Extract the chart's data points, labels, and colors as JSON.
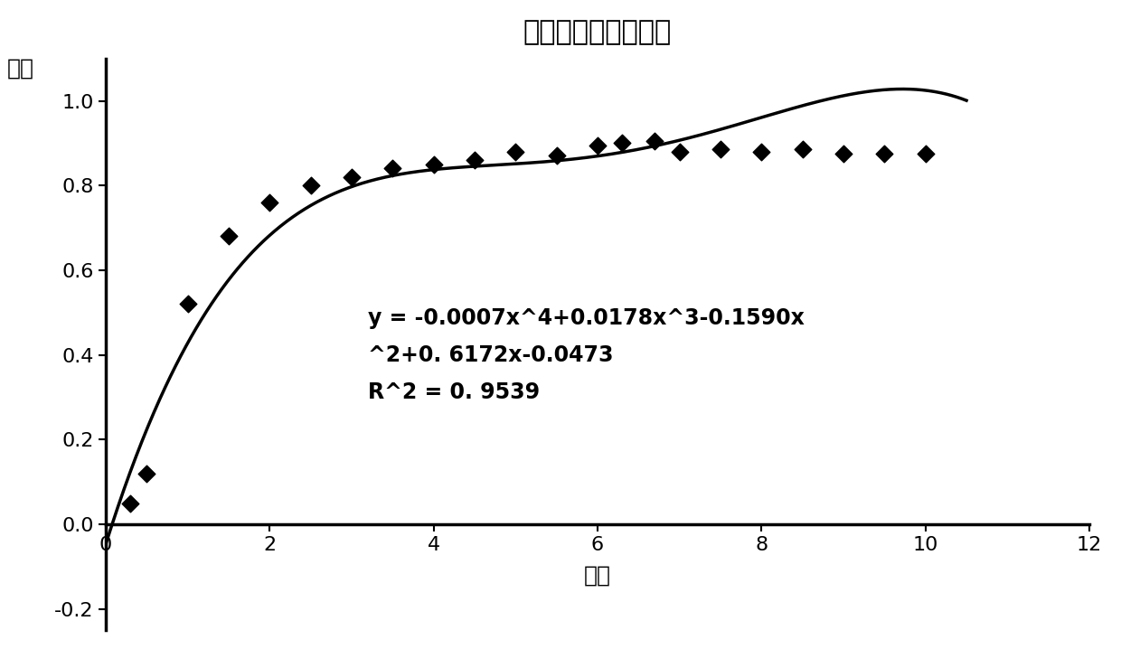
{
  "title": "效率随幅度变化曲线",
  "xlabel": "幅度",
  "ylabel": "效率",
  "xlim": [
    0,
    12
  ],
  "ylim": [
    -0.25,
    1.1
  ],
  "xticks": [
    0,
    2,
    4,
    6,
    8,
    10,
    12
  ],
  "yticks": [
    -0.2,
    0,
    0.2,
    0.4,
    0.6,
    0.8,
    1
  ],
  "scatter_x": [
    0.3,
    0.5,
    1.0,
    1.5,
    2.0,
    2.5,
    3.0,
    3.5,
    4.0,
    4.5,
    5.0,
    5.5,
    6.0,
    6.3,
    6.7,
    7.0,
    7.5,
    8.0,
    8.5,
    9.0,
    9.5,
    10.0
  ],
  "scatter_y": [
    0.05,
    0.12,
    0.52,
    0.68,
    0.76,
    0.8,
    0.82,
    0.84,
    0.85,
    0.86,
    0.88,
    0.87,
    0.895,
    0.9,
    0.905,
    0.88,
    0.885,
    0.88,
    0.885,
    0.875,
    0.875,
    0.875
  ],
  "poly_coeffs": [
    -0.0007,
    0.0178,
    -0.159,
    0.6172,
    -0.0473
  ],
  "equation_line1": "y = -0.0007x^4+0.0178x^3-0.1590x",
  "equation_line2": "^2+0. 6172x-0.0473",
  "equation_line3": "R^2 = 0. 9539",
  "background_color": "#ffffff",
  "curve_color": "#000000",
  "scatter_color": "#000000",
  "text_color": "#000000",
  "title_fontsize": 22,
  "label_fontsize": 18,
  "tick_fontsize": 16,
  "annotation_fontsize": 17
}
